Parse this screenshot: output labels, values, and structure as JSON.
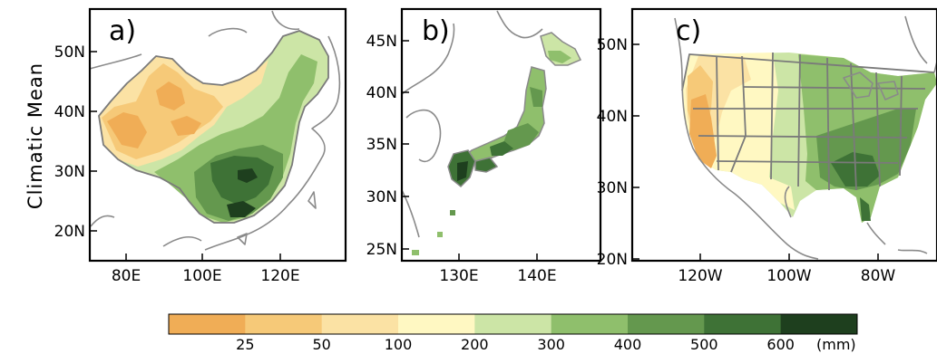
{
  "row_label": "Climatic Mean",
  "colors": [
    "#f0ad56",
    "#f6c978",
    "#fbe2a4",
    "#fff8c2",
    "#cce5a6",
    "#8fbf6c",
    "#64984e",
    "#3e7236",
    "#1e3f1e"
  ],
  "colorbar": {
    "ticks": [
      "25",
      "50",
      "100",
      "200",
      "300",
      "400",
      "500",
      "600"
    ],
    "unit": "(mm)"
  },
  "panels": [
    {
      "letter": "a)",
      "yticks": [
        "50N",
        "40N",
        "30N",
        "20N"
      ],
      "xticks": [
        "80E",
        "100E",
        "120E"
      ]
    },
    {
      "letter": "b)",
      "yticks": [
        "45N",
        "40N",
        "35N",
        "30N",
        "25N"
      ],
      "xticks": [
        "130E",
        "140E"
      ]
    },
    {
      "letter": "c)",
      "yticks": [
        "50N",
        "40N",
        "30N",
        "20N"
      ],
      "xticks": [
        "120W",
        "100W",
        "80W"
      ]
    }
  ]
}
